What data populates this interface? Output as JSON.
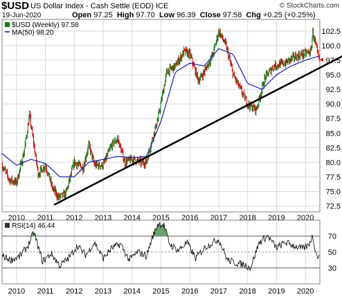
{
  "header": {
    "symbol": "$USD",
    "name": "US Dollar Index - Cash Settle (EOD)",
    "exchange": "ICE",
    "copyright": "© StockCharts.com",
    "date": "19-Jun-2020",
    "open_label": "Open",
    "open": "97.25",
    "high_label": "High",
    "high": "97.70",
    "low_label": "Low",
    "low": "96.39",
    "close_label": "Close",
    "close": "97.58",
    "chg_label": "Chg",
    "chg": "+0.25 (+0.25%)"
  },
  "legend": {
    "price": "$USD (Weekly) 97.58",
    "ma": "MA(50) 98.20",
    "rsi": "RSI(14) 46.44"
  },
  "colors": {
    "up": "#1a7a1a",
    "down": "#d01010",
    "ma": "#1a1aa8",
    "trendline": "#000000",
    "rsi_line": "#000000",
    "rsi_fill": "#6fa06f",
    "grid": "#d8d8d8"
  },
  "chart_data": [
    {
      "type": "line",
      "title": "$USD US Dollar Index - Cash Settle (EOD)",
      "xlabel": "",
      "ylabel": "",
      "ylim": [
        71.5,
        104.5
      ],
      "grid": true,
      "legend_position": "top-left",
      "x_ticks": [
        "2010",
        "2011",
        "2012",
        "2013",
        "2014",
        "2015",
        "2016",
        "2017",
        "2018",
        "2019",
        "2020"
      ],
      "y_ticks": [
        72.5,
        75.0,
        77.5,
        80.0,
        82.5,
        85.0,
        87.5,
        90.0,
        92.5,
        95.0,
        97.5,
        100.0,
        102.5
      ],
      "series": [
        {
          "name": "$USD (Weekly)",
          "x": [
            2009.5,
            2009.75,
            2010.0,
            2010.25,
            2010.45,
            2010.75,
            2011.0,
            2011.25,
            2011.45,
            2011.7,
            2012.0,
            2012.3,
            2012.5,
            2012.7,
            2013.0,
            2013.3,
            2013.5,
            2013.75,
            2014.0,
            2014.3,
            2014.5,
            2014.7,
            2014.9,
            2015.2,
            2015.5,
            2015.8,
            2016.0,
            2016.3,
            2016.5,
            2016.8,
            2017.0,
            2017.25,
            2017.5,
            2017.75,
            2018.0,
            2018.3,
            2018.6,
            2018.9,
            2019.3,
            2019.6,
            2019.9,
            2020.2,
            2020.25,
            2020.4,
            2020.47
          ],
          "values": [
            79.5,
            77.0,
            76.5,
            81.5,
            88.0,
            78.0,
            79.5,
            75.5,
            74.0,
            74.5,
            80.0,
            79.0,
            83.0,
            79.5,
            79.5,
            83.0,
            84.0,
            80.0,
            80.5,
            80.0,
            80.0,
            84.0,
            87.5,
            95.5,
            96.5,
            99.0,
            98.5,
            94.0,
            95.5,
            98.5,
            102.5,
            100.0,
            95.0,
            92.5,
            90.0,
            89.0,
            94.5,
            96.5,
            97.0,
            98.0,
            98.5,
            99.0,
            102.5,
            99.0,
            97.58
          ]
        },
        {
          "name": "MA(50)",
          "x": [
            2009.5,
            2010.0,
            2010.5,
            2011.0,
            2011.5,
            2012.0,
            2012.5,
            2013.0,
            2013.5,
            2014.0,
            2014.5,
            2015.0,
            2015.5,
            2016.0,
            2016.5,
            2017.0,
            2017.5,
            2018.0,
            2018.5,
            2019.0,
            2019.5,
            2020.0,
            2020.47
          ],
          "values": [
            81.5,
            79.5,
            80.5,
            79.8,
            77.5,
            77.5,
            80.0,
            80.5,
            81.0,
            80.8,
            81.0,
            87.0,
            95.5,
            97.0,
            96.5,
            99.5,
            98.5,
            93.5,
            92.5,
            95.0,
            96.5,
            97.5,
            98.2
          ]
        },
        {
          "name": "Trendline",
          "x": [
            2011.3,
            2020.5
          ],
          "values": [
            72.7,
            96.2
          ]
        }
      ]
    },
    {
      "type": "line",
      "title": "RSI(14) 46.44",
      "xlabel": "",
      "ylabel": "",
      "ylim": [
        10,
        90
      ],
      "grid": true,
      "legend_position": "top-left",
      "x_ticks": [
        "2010",
        "2011",
        "2012",
        "2013",
        "2014",
        "2015",
        "2016",
        "2017",
        "2018",
        "2019",
        "2020"
      ],
      "y_ticks": [
        30,
        50,
        70
      ],
      "reference_lines": [
        30,
        50,
        70
      ],
      "series": [
        {
          "name": "RSI(14)",
          "x": [
            2009.5,
            2009.8,
            2010.1,
            2010.4,
            2010.6,
            2010.9,
            2011.2,
            2011.5,
            2011.8,
            2012.1,
            2012.4,
            2012.7,
            2013.0,
            2013.3,
            2013.6,
            2013.9,
            2014.2,
            2014.5,
            2014.7,
            2014.9,
            2015.1,
            2015.3,
            2015.6,
            2015.9,
            2016.2,
            2016.5,
            2016.8,
            2017.0,
            2017.3,
            2017.6,
            2017.9,
            2018.1,
            2018.4,
            2018.7,
            2019.0,
            2019.3,
            2019.6,
            2019.9,
            2020.1,
            2020.25,
            2020.4,
            2020.47
          ],
          "values": [
            45,
            40,
            44,
            58,
            75,
            38,
            48,
            33,
            42,
            58,
            46,
            62,
            42,
            55,
            60,
            40,
            50,
            45,
            68,
            86,
            84,
            60,
            52,
            62,
            42,
            55,
            62,
            66,
            40,
            36,
            34,
            30,
            62,
            70,
            55,
            62,
            58,
            54,
            58,
            70,
            44,
            46.44
          ]
        }
      ]
    }
  ]
}
